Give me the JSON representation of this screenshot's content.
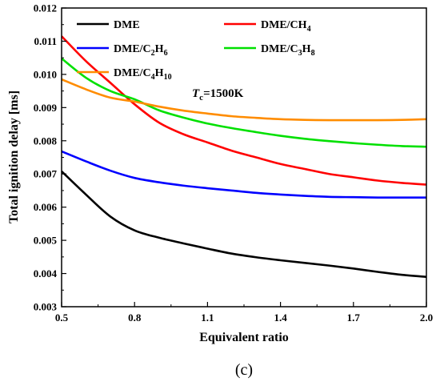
{
  "chart_data": {
    "type": "line",
    "xlabel": "Equivalent ratio",
    "ylabel": "Total ignition delay [ms]",
    "xlim": [
      0.5,
      2.0
    ],
    "ylim": [
      0.003,
      0.012
    ],
    "x_ticks": [
      0.5,
      0.8,
      1.1,
      1.4,
      1.7,
      2.0
    ],
    "x_tick_labels": [
      "0.5",
      "0.8",
      "1.1",
      "1.4",
      "1.7",
      "2.0"
    ],
    "y_ticks": [
      0.003,
      0.004,
      0.005,
      0.006,
      0.007,
      0.008,
      0.009,
      0.01,
      0.011,
      0.012
    ],
    "y_tick_labels": [
      "0.003",
      "0.004",
      "0.005",
      "0.006",
      "0.007",
      "0.008",
      "0.009",
      "0.010",
      "0.011",
      "0.012"
    ],
    "grid": false,
    "legend_position": "top",
    "annotation": {
      "base": "T",
      "sub": "c",
      "rest": "=1500K"
    },
    "caption": "(c)",
    "x": [
      0.5,
      0.6,
      0.7,
      0.8,
      0.9,
      1.0,
      1.1,
      1.2,
      1.3,
      1.4,
      1.5,
      1.6,
      1.7,
      1.8,
      1.9,
      2.0
    ],
    "series": [
      {
        "name": "DME",
        "legend": [
          {
            "t": "DME"
          }
        ],
        "color": "#000000",
        "values": [
          0.00708,
          0.00638,
          0.00572,
          0.0053,
          0.00508,
          0.00491,
          0.00475,
          0.0046,
          0.00449,
          0.0044,
          0.00432,
          0.00424,
          0.00415,
          0.00405,
          0.00396,
          0.0039
        ]
      },
      {
        "name": "DME/CH4",
        "legend": [
          {
            "t": "DME/CH"
          },
          {
            "t": "4",
            "sub": true
          }
        ],
        "color": "#ff0000",
        "values": [
          0.01115,
          0.0104,
          0.00975,
          0.0091,
          0.00855,
          0.0082,
          0.00795,
          0.0077,
          0.0075,
          0.0073,
          0.00715,
          0.007,
          0.0069,
          0.0068,
          0.00673,
          0.00668
        ]
      },
      {
        "name": "DME/C2H6",
        "legend": [
          {
            "t": "DME/C"
          },
          {
            "t": "2",
            "sub": true
          },
          {
            "t": "H"
          },
          {
            "t": "6",
            "sub": true
          }
        ],
        "color": "#0000ff",
        "values": [
          0.00768,
          0.00738,
          0.0071,
          0.00688,
          0.00675,
          0.00665,
          0.00657,
          0.0065,
          0.00643,
          0.00638,
          0.00634,
          0.00631,
          0.0063,
          0.00629,
          0.00629,
          0.00629
        ]
      },
      {
        "name": "DME/C3H8",
        "legend": [
          {
            "t": "DME/C"
          },
          {
            "t": "3",
            "sub": true
          },
          {
            "t": "H"
          },
          {
            "t": "8",
            "sub": true
          }
        ],
        "color": "#00e000",
        "values": [
          0.01048,
          0.0099,
          0.0095,
          0.00925,
          0.00892,
          0.0087,
          0.00852,
          0.00838,
          0.00826,
          0.00815,
          0.00806,
          0.00799,
          0.00793,
          0.00788,
          0.00784,
          0.00782
        ]
      },
      {
        "name": "DME/C4H10",
        "legend": [
          {
            "t": "DME/C"
          },
          {
            "t": "4",
            "sub": true
          },
          {
            "t": "H"
          },
          {
            "t": "10",
            "sub": true
          }
        ],
        "color": "#ff8c00",
        "values": [
          0.00985,
          0.00955,
          0.0093,
          0.00918,
          0.00903,
          0.00891,
          0.00882,
          0.00874,
          0.00869,
          0.00865,
          0.00863,
          0.00862,
          0.00862,
          0.00862,
          0.00863,
          0.00865
        ]
      }
    ]
  }
}
